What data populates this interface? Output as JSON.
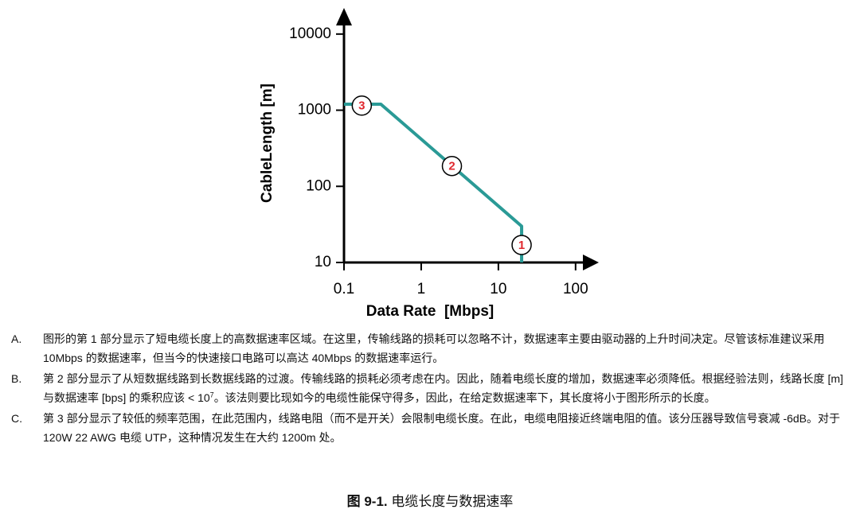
{
  "chart_data": {
    "type": "line",
    "log_x": true,
    "log_y": true,
    "color": "#2a9a96",
    "x": [
      0.1,
      0.3,
      20,
      20
    ],
    "values": [
      1200,
      1200,
      30,
      10
    ],
    "xlim": [
      0.1,
      200
    ],
    "ylim": [
      10,
      20000
    ],
    "xticks": [
      0.1,
      1,
      10,
      100
    ],
    "yticks": [
      10,
      100,
      1000,
      10000
    ],
    "x_label": "Data Rate  [Mbps]",
    "y_label": "CableLength [m]",
    "annotations": [
      {
        "text": "3",
        "x": 0.17,
        "y": 1150
      },
      {
        "text": "2",
        "x": 2.5,
        "y": 185
      },
      {
        "text": "1",
        "x": 20,
        "y": 17
      }
    ]
  },
  "list": [
    {
      "label": "A.",
      "text": "图形的第 1 部分显示了短电缆长度上的高数据速率区域。在这里，传输线路的损耗可以忽略不计，数据速率主要由驱动器的上升时间决定。尽管该标准建议采用 10Mbps 的数据速率，但当今的快速接口电路可以高达 40Mbps 的数据速率运行。"
    },
    {
      "label": "B.",
      "text": "第 2 部分显示了从短数据线路到长数据线路的过渡。传输线路的损耗必须考虑在内。因此，随着电缆长度的增加，数据速率必须降低。根据经验法则，线路长度 [m] 与数据速率 [bps] 的乘积应该 < 10",
      "sup": "7",
      "text_after": "。该法则要比现如今的电缆性能保守得多，因此，在给定数据速率下，其长度将小于图形所示的长度。"
    },
    {
      "label": "C.",
      "text": "第 3 部分显示了较低的频率范围，在此范围内，线路电阻（而不是开关）会限制电缆长度。在此，电缆电阻接近终端电阻的值。该分压器导致信号衰减 -6dB。对于 120W 22 AWG 电缆 UTP，这种情况发生在大约 1200m 处。"
    }
  ],
  "caption": {
    "label": "图 9-1.",
    "text": " 电缆长度与数据速率"
  }
}
